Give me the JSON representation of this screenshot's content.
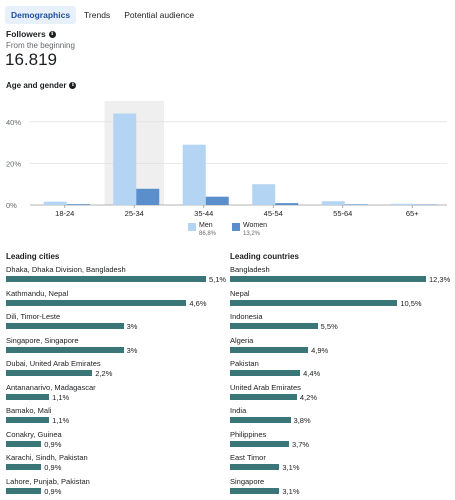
{
  "tabs": [
    {
      "label": "Demographics",
      "active": true
    },
    {
      "label": "Trends",
      "active": false
    },
    {
      "label": "Potential audience",
      "active": false
    }
  ],
  "followers": {
    "title": "Followers",
    "subtitle": "From the beginning",
    "value": "16.819"
  },
  "age_gender": {
    "title": "Age and gender"
  },
  "chart_data": {
    "type": "bar",
    "categories": [
      "18-24",
      "25-34",
      "35-44",
      "45-54",
      "55-64",
      "65+"
    ],
    "series": [
      {
        "name": "Men",
        "share": "86,8%",
        "color": "#b3d4f2",
        "values": [
          1.6,
          44,
          29,
          10,
          1.8,
          0.6
        ]
      },
      {
        "name": "Women",
        "share": "13,2%",
        "color": "#5a8fcc",
        "values": [
          0.4,
          7.8,
          4,
          0.9,
          0.3,
          0.2
        ]
      }
    ],
    "highlighted_category": "25-34",
    "yticks": [
      "0%",
      "20%",
      "40%"
    ],
    "ylim": [
      0,
      50
    ],
    "grid": true,
    "legend": "bottom"
  },
  "leading_cities": {
    "title": "Leading cities",
    "max": 5.1,
    "items": [
      {
        "label": "Dhaka, Dhaka Division, Bangladesh",
        "value": 5.1,
        "display": "5,1%"
      },
      {
        "label": "Kathmandu, Nepal",
        "value": 4.6,
        "display": "4,6%"
      },
      {
        "label": "Dili, Timor-Leste",
        "value": 3.0,
        "display": "3%"
      },
      {
        "label": "Singapore, Singapore",
        "value": 3.0,
        "display": "3%"
      },
      {
        "label": "Dubai, United Arab Emirates",
        "value": 2.2,
        "display": "2,2%"
      },
      {
        "label": "Antananarivo, Madagascar",
        "value": 1.1,
        "display": "1,1%"
      },
      {
        "label": "Bamako, Mali",
        "value": 1.1,
        "display": "1,1%"
      },
      {
        "label": "Conakry, Guinea",
        "value": 0.9,
        "display": "0,9%"
      },
      {
        "label": "Karachi, Sindh, Pakistan",
        "value": 0.9,
        "display": "0,9%"
      },
      {
        "label": "Lahore, Punjab, Pakistan",
        "value": 0.9,
        "display": "0,9%"
      }
    ]
  },
  "leading_countries": {
    "title": "Leading countries",
    "max": 12.3,
    "items": [
      {
        "label": "Bangladesh",
        "value": 12.3,
        "display": "12,3%"
      },
      {
        "label": "Nepal",
        "value": 10.5,
        "display": "10,5%"
      },
      {
        "label": "Indonesia",
        "value": 5.5,
        "display": "5,5%"
      },
      {
        "label": "Algeria",
        "value": 4.9,
        "display": "4,9%"
      },
      {
        "label": "Pakistan",
        "value": 4.4,
        "display": "4,4%"
      },
      {
        "label": "United Arab Emirates",
        "value": 4.2,
        "display": "4,2%"
      },
      {
        "label": "India",
        "value": 3.8,
        "display": "3,8%"
      },
      {
        "label": "Philippines",
        "value": 3.7,
        "display": "3,7%"
      },
      {
        "label": "East Timor",
        "value": 3.1,
        "display": "3,1%"
      },
      {
        "label": "Singapore",
        "value": 3.1,
        "display": "3,1%"
      }
    ]
  }
}
